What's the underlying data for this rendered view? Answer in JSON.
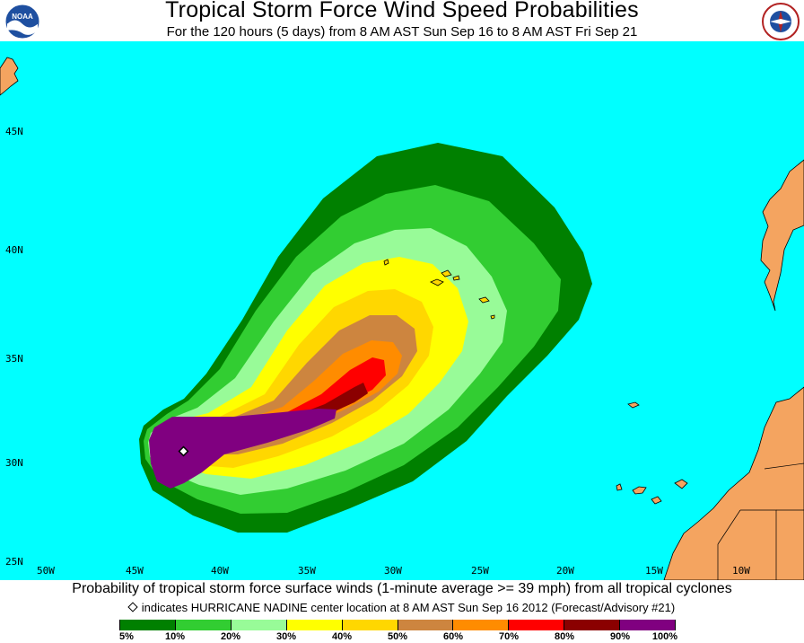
{
  "header": {
    "title": "Tropical Storm Force Wind Speed Probabilities",
    "subtitle": "For the 120 hours (5 days) from 8 AM AST Sun Sep 16 to 8 AM AST Fri Sep 21",
    "left_logo_text": "NOAA",
    "right_logo_text": "NATIONAL WEATHER SERVICE"
  },
  "map": {
    "ocean_color": "#00ffff",
    "land_color": "#f4a460",
    "latitude_labels": [
      "45N",
      "40N",
      "35N",
      "30N",
      "25N"
    ],
    "longitude_labels": [
      "50W",
      "45W",
      "40W",
      "35W",
      "30W",
      "25W",
      "20W",
      "15W",
      "10W"
    ],
    "storm_center_icon": "diamond-marker-icon"
  },
  "footer": {
    "caption": "Probability of tropical storm force surface winds (1-minute average >= 39 mph) from all tropical cyclones",
    "marker_note": "indicates HURRICANE NADINE center location at 8 AM AST Sun Sep 16 2012 (Forecast/Advisory #21)"
  },
  "legend": {
    "colors": [
      "#008000",
      "#32cd32",
      "#98fb98",
      "#ffff00",
      "#ffd700",
      "#cd853f",
      "#ff8c00",
      "#ff0000",
      "#8b0000",
      "#800080"
    ],
    "labels": [
      "5%",
      "10%",
      "20%",
      "30%",
      "40%",
      "50%",
      "60%",
      "70%",
      "80%",
      "90%",
      "100%"
    ]
  }
}
